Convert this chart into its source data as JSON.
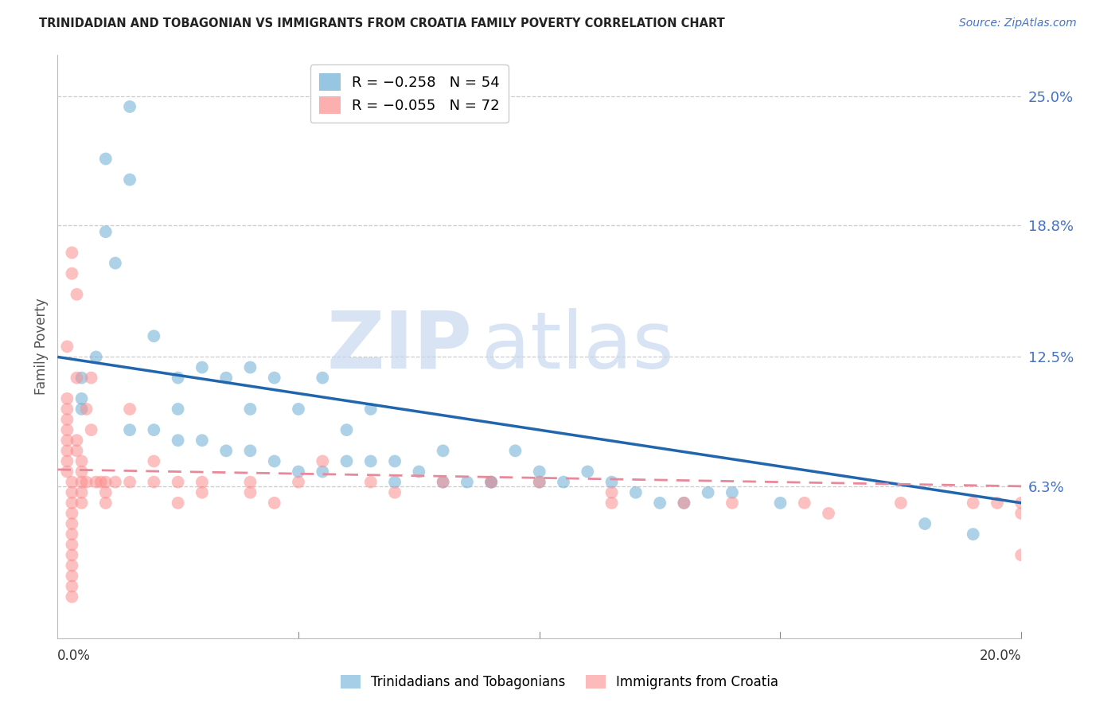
{
  "title": "TRINIDADIAN AND TOBAGONIAN VS IMMIGRANTS FROM CROATIA FAMILY POVERTY CORRELATION CHART",
  "source": "Source: ZipAtlas.com",
  "ylabel": "Family Poverty",
  "y_tick_labels": [
    "25.0%",
    "18.8%",
    "12.5%",
    "6.3%"
  ],
  "y_tick_values": [
    0.25,
    0.188,
    0.125,
    0.063
  ],
  "x_range": [
    0.0,
    0.2
  ],
  "y_range": [
    -0.01,
    0.27
  ],
  "legend_blue_r": "R = −0.258",
  "legend_blue_n": "N = 54",
  "legend_pink_r": "R = −0.055",
  "legend_pink_n": "N = 72",
  "blue_color": "#6baed6",
  "pink_color": "#fc8d8d",
  "blue_line_color": "#2166ac",
  "pink_line_color": "#e8889a",
  "blue_line_x0": 0.0,
  "blue_line_y0": 0.125,
  "blue_line_x1": 0.2,
  "blue_line_y1": 0.055,
  "pink_line_x0": 0.0,
  "pink_line_y0": 0.071,
  "pink_line_x1": 0.2,
  "pink_line_y1": 0.063,
  "watermark_zip": "ZIP",
  "watermark_atlas": "atlas",
  "blue_scatter_x": [
    0.005,
    0.005,
    0.005,
    0.008,
    0.01,
    0.01,
    0.012,
    0.015,
    0.015,
    0.02,
    0.025,
    0.025,
    0.03,
    0.035,
    0.04,
    0.04,
    0.045,
    0.05,
    0.055,
    0.06,
    0.065,
    0.07,
    0.075,
    0.08,
    0.085,
    0.09,
    0.095,
    0.1,
    0.105,
    0.11,
    0.115,
    0.12,
    0.125,
    0.13,
    0.135,
    0.14,
    0.015,
    0.02,
    0.025,
    0.03,
    0.035,
    0.04,
    0.045,
    0.05,
    0.055,
    0.06,
    0.065,
    0.07,
    0.08,
    0.09,
    0.1,
    0.15,
    0.18,
    0.19
  ],
  "blue_scatter_y": [
    0.115,
    0.105,
    0.1,
    0.125,
    0.22,
    0.185,
    0.17,
    0.21,
    0.245,
    0.135,
    0.115,
    0.1,
    0.12,
    0.115,
    0.1,
    0.12,
    0.115,
    0.1,
    0.115,
    0.09,
    0.1,
    0.075,
    0.07,
    0.08,
    0.065,
    0.065,
    0.08,
    0.07,
    0.065,
    0.07,
    0.065,
    0.06,
    0.055,
    0.055,
    0.06,
    0.06,
    0.09,
    0.09,
    0.085,
    0.085,
    0.08,
    0.08,
    0.075,
    0.07,
    0.07,
    0.075,
    0.075,
    0.065,
    0.065,
    0.065,
    0.065,
    0.055,
    0.045,
    0.04
  ],
  "pink_scatter_x": [
    0.002,
    0.002,
    0.002,
    0.002,
    0.002,
    0.002,
    0.002,
    0.002,
    0.002,
    0.003,
    0.003,
    0.003,
    0.003,
    0.003,
    0.003,
    0.003,
    0.003,
    0.003,
    0.003,
    0.003,
    0.003,
    0.003,
    0.003,
    0.004,
    0.004,
    0.004,
    0.004,
    0.005,
    0.005,
    0.005,
    0.005,
    0.005,
    0.006,
    0.006,
    0.007,
    0.007,
    0.008,
    0.009,
    0.01,
    0.01,
    0.01,
    0.012,
    0.015,
    0.015,
    0.02,
    0.02,
    0.025,
    0.025,
    0.03,
    0.03,
    0.04,
    0.04,
    0.045,
    0.05,
    0.055,
    0.065,
    0.07,
    0.08,
    0.09,
    0.1,
    0.115,
    0.115,
    0.13,
    0.14,
    0.155,
    0.16,
    0.175,
    0.19,
    0.195,
    0.2,
    0.2,
    0.2
  ],
  "pink_scatter_y": [
    0.13,
    0.105,
    0.1,
    0.095,
    0.09,
    0.085,
    0.08,
    0.075,
    0.07,
    0.065,
    0.06,
    0.055,
    0.05,
    0.045,
    0.04,
    0.035,
    0.03,
    0.025,
    0.02,
    0.015,
    0.01,
    0.175,
    0.165,
    0.155,
    0.115,
    0.085,
    0.08,
    0.075,
    0.07,
    0.065,
    0.06,
    0.055,
    0.1,
    0.065,
    0.115,
    0.09,
    0.065,
    0.065,
    0.065,
    0.06,
    0.055,
    0.065,
    0.1,
    0.065,
    0.075,
    0.065,
    0.065,
    0.055,
    0.065,
    0.06,
    0.065,
    0.06,
    0.055,
    0.065,
    0.075,
    0.065,
    0.06,
    0.065,
    0.065,
    0.065,
    0.06,
    0.055,
    0.055,
    0.055,
    0.055,
    0.05,
    0.055,
    0.055,
    0.055,
    0.055,
    0.05,
    0.03
  ]
}
